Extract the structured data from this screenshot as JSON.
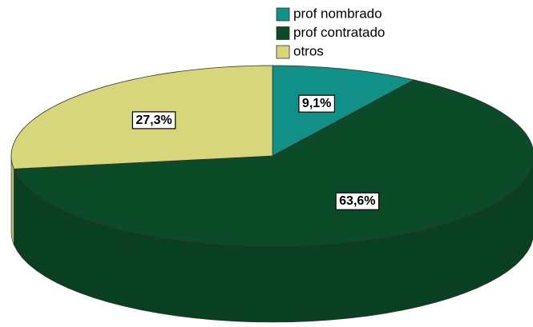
{
  "chart_data": {
    "type": "pie",
    "categories": [
      "prof nombrado",
      "prof contratado",
      "otros"
    ],
    "values": [
      9.1,
      63.6,
      27.3
    ],
    "value_labels": [
      "9,1%",
      "63,6%",
      "27,3%"
    ],
    "colors": [
      "#119088",
      "#0b4b27",
      "#d8d67a"
    ],
    "legend": "top"
  }
}
